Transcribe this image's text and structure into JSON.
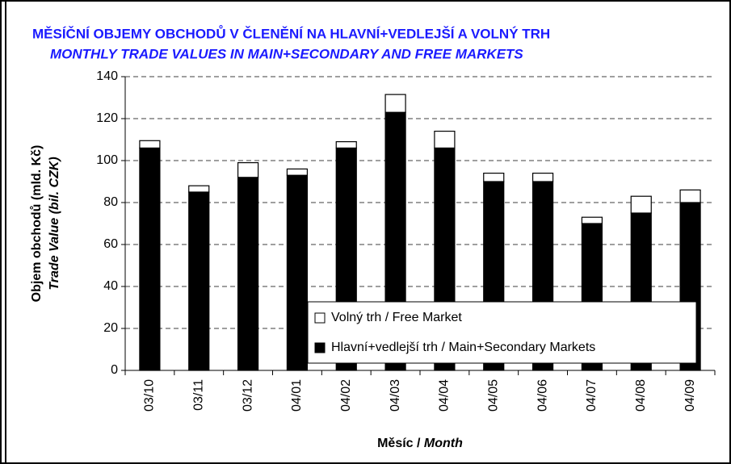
{
  "chart_data": {
    "type": "stacked_bar",
    "title": "MĚSÍČNÍ OBJEMY OBCHODŮ V ČLENĚNÍ NA HLAVNÍ+VEDLEJŠÍ A VOLNÝ TRH",
    "subtitle": "MONTHLY TRADE VALUES IN MAIN+SECONDARY AND FREE MARKETS",
    "ylabel": {
      "cz": "Objem obchodů (mld. Kč)",
      "en": "Trade Value (bil. CZK)"
    },
    "xlabel": {
      "cz": "Měsíc /",
      "en": "Month"
    },
    "categories": [
      "03/10",
      "03/11",
      "03/12",
      "04/01",
      "04/02",
      "04/03",
      "04/04",
      "04/05",
      "04/06",
      "04/07",
      "04/08",
      "04/09"
    ],
    "series": [
      {
        "name": "Hlavní+vedlejší trh / Main+Secondary Markets",
        "color": "#000000",
        "values": [
          106,
          85,
          92,
          93,
          106,
          123,
          106,
          90,
          90,
          70,
          75,
          80
        ]
      },
      {
        "name": "Volný trh / Free Market",
        "color": "#ffffff",
        "values": [
          3.5,
          3,
          7,
          3,
          3,
          8.5,
          8,
          4,
          4,
          3,
          8,
          6
        ]
      }
    ],
    "ylim": [
      0,
      140
    ],
    "yticks": [
      0,
      20,
      40,
      60,
      80,
      100,
      120,
      140
    ],
    "grid": true
  }
}
